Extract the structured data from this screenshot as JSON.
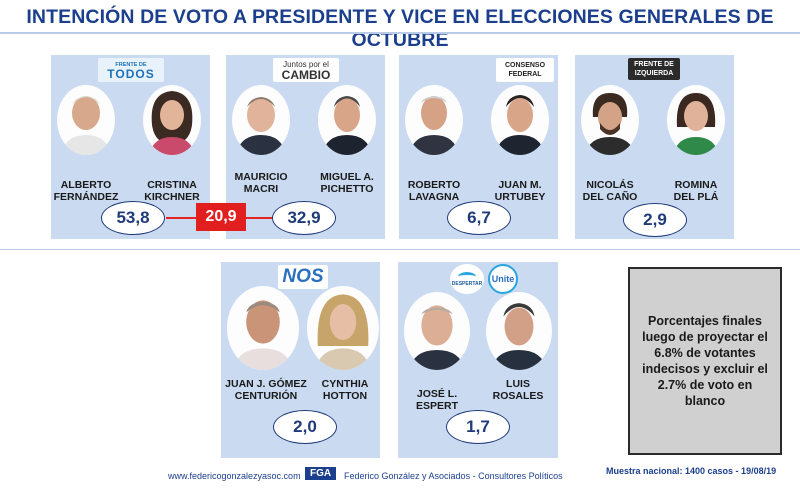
{
  "title": "INTENCIÓN DE VOTO A PRESIDENTE Y VICE EN ELECCIONES GENERALES DE OCTUBRE",
  "chart_data": {
    "type": "table",
    "title": "INTENCIÓN DE VOTO A PRESIDENTE Y VICE EN ELECCIONES GENERALES DE OCTUBRE",
    "rows": [
      {
        "party": "FRENTE DE TODOS",
        "president": [
          "ALBERTO",
          "FERNÁNDEZ"
        ],
        "vice": [
          "CRISTINA",
          "KIRCHNER"
        ],
        "value": "53,8"
      },
      {
        "party": "Juntos por el CAMBIO",
        "president": [
          "MAURICIO",
          "MACRI"
        ],
        "vice": [
          "MIGUEL A.",
          "PICHETTO"
        ],
        "value": "32,9"
      },
      {
        "party": "CONSENSO FEDERAL",
        "president": [
          "ROBERTO",
          "LAVAGNA"
        ],
        "vice": [
          "JUAN M.",
          "URTUBEY"
        ],
        "value": "6,7"
      },
      {
        "party": "FRENTE DE IZQUIERDA",
        "president": [
          "NICOLÁS",
          "DEL CAÑO"
        ],
        "vice": [
          "ROMINA",
          "DEL PLÁ"
        ],
        "value": "2,9"
      },
      {
        "party": "NOS",
        "president": [
          "JUAN J. GÓMEZ",
          "CENTURIÓN"
        ],
        "vice": [
          "CYNTHIA",
          "HOTTON"
        ],
        "value": "2,0"
      },
      {
        "party": "DESPERTAR / Unite",
        "president": [
          "JOSÉ L.",
          "ESPERT"
        ],
        "vice": [
          "LUIS",
          "ROSALES"
        ],
        "value": "1,7"
      }
    ],
    "difference": "20,9"
  },
  "logos": {
    "todos_top": "FRENTE DE",
    "todos_main": "TODOS",
    "cambio_top": "Juntos por el",
    "cambio_main": "CAMBIO",
    "consenso_top": "CONSENSO",
    "consenso_bottom": "FEDERAL",
    "izquierda_top": "FRENTE DE",
    "izquierda_bottom": "IZQUIERDA",
    "nos": "NOS",
    "despertar": "DESPERTAR",
    "unite": "Unite"
  },
  "note": "Porcentajes finales luego de proyectar el 6.8% de votantes indecisos y excluir el 2.7% de voto en blanco",
  "footer": {
    "website": "www.federicogonzalezyasoc.com",
    "brand_logo": "FGA",
    "consultancy": "Federico González y Asociados - Consultores Políticos",
    "sample": "Muestra nacional: 1400 casos - 19/08/19"
  },
  "colors": {
    "title": "#1b3f8c",
    "card": "#c9daf1",
    "difference": "#e21f1f",
    "value_border": "#1f3b7a"
  }
}
